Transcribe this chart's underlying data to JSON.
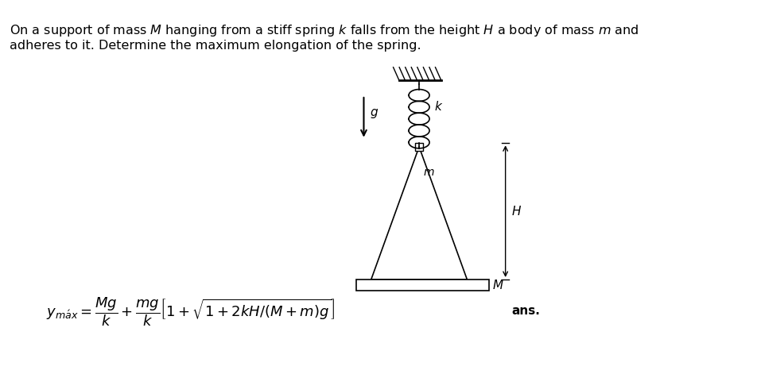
{
  "title_line1": "On a support of mass $M$ hanging from a stiff spring $k$ falls from the height $H$ a body of mass $m$ and",
  "title_line2": "adheres to it. Determine the maximum elongation of the spring.",
  "formula": "$y_{m\\acute{a}x} = \\dfrac{Mg}{k} + \\dfrac{mg}{k}\\left[1 + \\sqrt{1 + 2kH/(M + m)g}\\right]$",
  "ans_text": "ans.",
  "bg_color": "#ffffff",
  "text_color": "#000000",
  "fig_width": 9.53,
  "fig_height": 4.71,
  "dpi": 100
}
